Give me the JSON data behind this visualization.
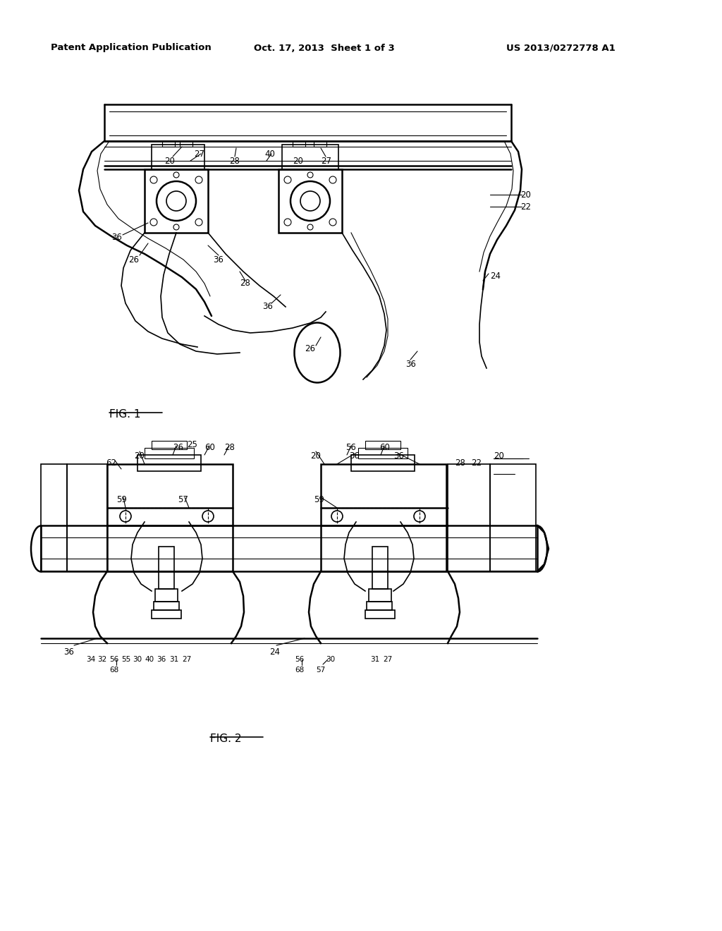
{
  "background_color": "#ffffff",
  "header_left": "Patent Application Publication",
  "header_middle": "Oct. 17, 2013  Sheet 1 of 3",
  "header_right": "US 2013/0272778 A1",
  "fig1_label": "FIG. 1",
  "fig2_label": "FIG. 2",
  "line_color": "#000000",
  "text_color": "#000000",
  "lw_heavy": 1.8,
  "lw_med": 1.2,
  "lw_thin": 0.8
}
